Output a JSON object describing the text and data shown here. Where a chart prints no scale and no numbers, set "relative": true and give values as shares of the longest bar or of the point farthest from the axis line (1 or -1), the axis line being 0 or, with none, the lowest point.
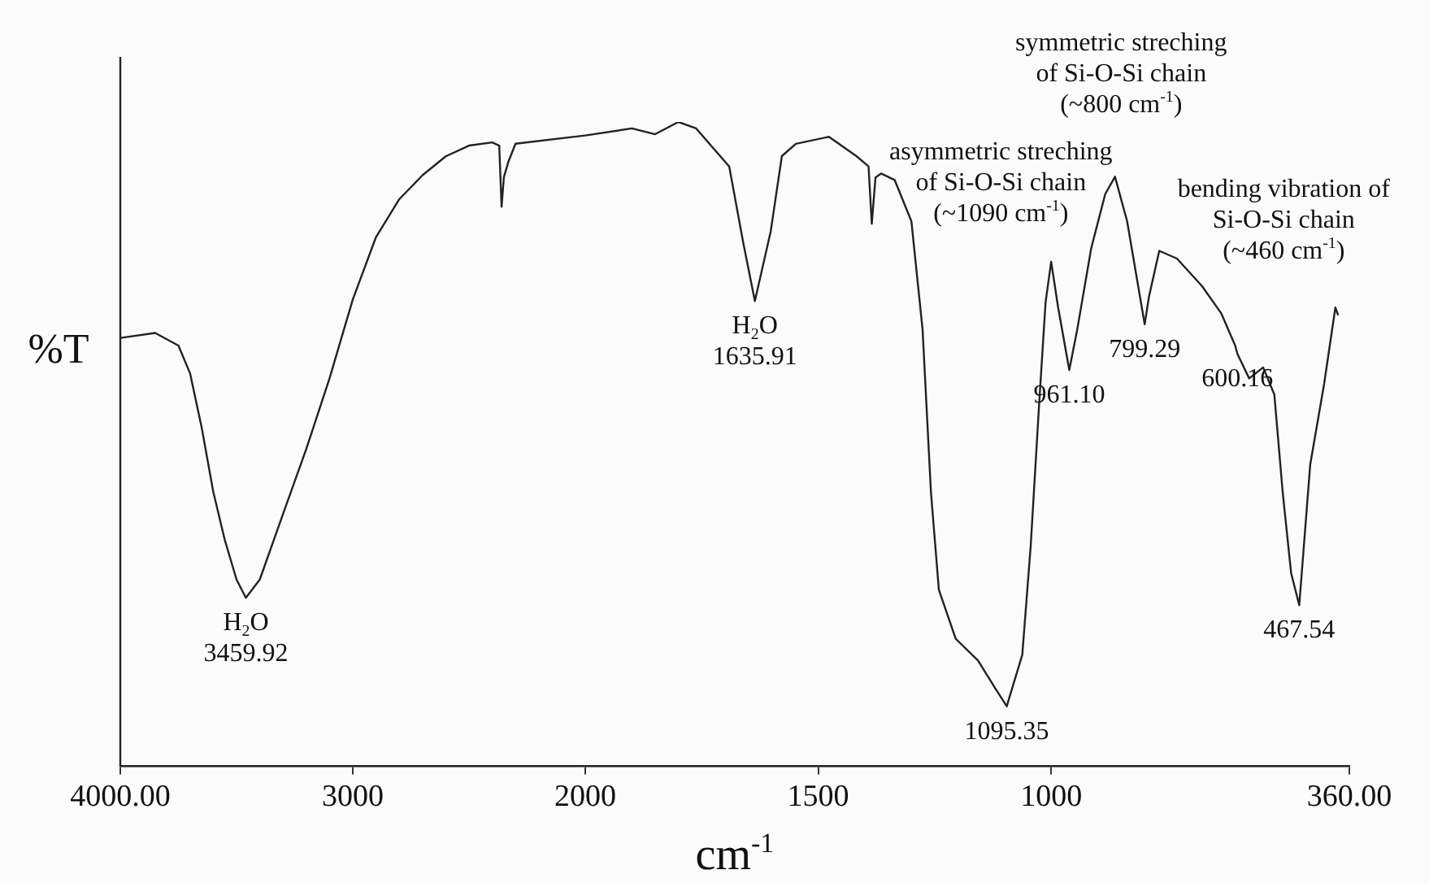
{
  "chart_data": [
    {
      "type": "line",
      "relative": true,
      "ylabel": "%T",
      "grid": false,
      "legend": false,
      "marker": "none",
      "line_style": "solid",
      "xlim": [
        4000,
        2000
      ],
      "xticks": [
        {
          "value": 4000,
          "label": "4000.00"
        },
        3000,
        2000
      ],
      "series": [
        {
          "color": "#222222",
          "x": [
            4000,
            3850,
            3750,
            3700,
            3650,
            3600,
            3550,
            3500,
            3459.92,
            3400,
            3300,
            3200,
            3100,
            3000,
            2900,
            2800,
            2700,
            2600,
            2500,
            2400,
            2370,
            2360,
            2350,
            2330,
            2300,
            2000
          ],
          "values": [
            0.679,
            0.687,
            0.667,
            0.623,
            0.537,
            0.435,
            0.358,
            0.296,
            0.267,
            0.296,
            0.4,
            0.503,
            0.615,
            0.74,
            0.839,
            0.899,
            0.937,
            0.967,
            0.984,
            0.989,
            0.984,
            0.887,
            0.934,
            0.959,
            0.987,
            1
          ]
        }
      ],
      "annotations": [
        {
          "text": "H$_{2}$O\n3459.92",
          "x": 3459.92,
          "y": 0.267
        }
      ]
    },
    {
      "type": "line",
      "relative": true,
      "xlabel": "cm$^{-1}$",
      "grid": false,
      "legend": false,
      "marker": "none",
      "line_style": "solid",
      "xlim": [
        2000,
        360
      ],
      "xticks": [
        1500,
        1000,
        {
          "value": 360,
          "label": "360.00"
        }
      ],
      "series": [
        {
          "color": "#222222",
          "x": [
            2000,
            1900,
            1850,
            1800,
            1762,
            1691,
            1661,
            1635.91,
            1602,
            1578,
            1548,
            1477,
            1418,
            1392,
            1385,
            1377,
            1365,
            1336,
            1300,
            1276,
            1258,
            1241,
            1205,
            1157,
            1121,
            1095.35,
            1062,
            1044,
            1026,
            1012,
            1000,
            985,
            961.1,
            944,
            914,
            884,
            863,
            837,
            799.29,
            790,
            768,
            730,
            676,
            635,
            605,
            600.16,
            575,
            545,
            521,
            503,
            485,
            467.54,
            444,
            414,
            390,
            384
          ],
          "values": [
            0.979,
            0.99,
            0.981,
            1.0,
            0.99,
            0.931,
            0.813,
            0.722,
            0.83,
            0.947,
            0.966,
            0.977,
            0.947,
            0.931,
            0.842,
            0.914,
            0.92,
            0.91,
            0.846,
            0.678,
            0.425,
            0.274,
            0.198,
            0.164,
            0.122,
            0.093,
            0.173,
            0.341,
            0.56,
            0.72,
            0.783,
            0.712,
            0.615,
            0.678,
            0.804,
            0.888,
            0.915,
            0.846,
            0.686,
            0.729,
            0.8,
            0.788,
            0.745,
            0.703,
            0.653,
            0.64,
            0.602,
            0.619,
            0.577,
            0.425,
            0.3,
            0.25,
            0.468,
            0.594,
            0.712,
            0.7
          ]
        }
      ],
      "annotations": [
        {
          "text": "H$_{2}$O\n1635.91",
          "x": 1635.91,
          "y": 0.722
        },
        {
          "text": "1095.35",
          "x": 1095.35,
          "y": 0.093
        },
        {
          "text": "961.10",
          "x": 961.1,
          "y": 0.615
        },
        {
          "text": "799.29",
          "x": 799.29,
          "y": 0.686
        },
        {
          "text": "600.16",
          "x": 600.16,
          "y": 0.64
        },
        {
          "text": "467.54",
          "x": 467.54,
          "y": 0.25
        },
        "asymmetric streching\nof Si-O-Si chain\n(~1090 cm$^{-1}$)",
        "symmetric streching\nof Si-O-Si chain\n(~800 cm$^{-1}$)",
        "bending vibration of\nSi-O-Si chain\n(~460 cm$^{-1}$)"
      ]
    }
  ]
}
